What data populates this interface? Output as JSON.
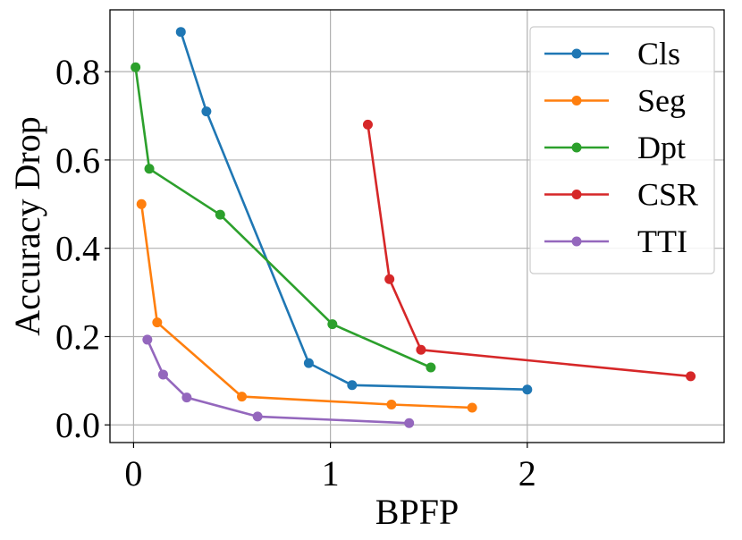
{
  "chart_data": {
    "type": "line",
    "xlabel": "BPFP",
    "ylabel": "Accuracy Drop",
    "xlim": [
      -0.12,
      3.0
    ],
    "ylim": [
      -0.04,
      0.94
    ],
    "xticks": [
      0,
      1,
      2
    ],
    "xtick_labels": [
      "0",
      "1",
      "2"
    ],
    "yticks": [
      0.0,
      0.2,
      0.4,
      0.6,
      0.8
    ],
    "ytick_labels": [
      "0.0",
      "0.2",
      "0.4",
      "0.6",
      "0.8"
    ],
    "grid": true,
    "legend_position": "top-right",
    "series": [
      {
        "name": "Cls",
        "color": "#1f77b4",
        "x": [
          0.24,
          0.37,
          0.89,
          1.11,
          2.0
        ],
        "y": [
          0.89,
          0.71,
          0.14,
          0.09,
          0.08
        ]
      },
      {
        "name": "Seg",
        "color": "#ff7f0e",
        "x": [
          0.04,
          0.12,
          0.55,
          1.31,
          1.72
        ],
        "y": [
          0.5,
          0.232,
          0.064,
          0.046,
          0.039
        ]
      },
      {
        "name": "Dpt",
        "color": "#2ca02c",
        "x": [
          0.01,
          0.08,
          0.44,
          1.01,
          1.51
        ],
        "y": [
          0.81,
          0.58,
          0.476,
          0.228,
          0.13
        ]
      },
      {
        "name": "CSR",
        "color": "#d62728",
        "x": [
          1.19,
          1.3,
          1.46,
          2.83
        ],
        "y": [
          0.68,
          0.33,
          0.17,
          0.11
        ]
      },
      {
        "name": "TTI",
        "color": "#9467bd",
        "x": [
          0.07,
          0.15,
          0.27,
          0.63,
          1.4
        ],
        "y": [
          0.193,
          0.114,
          0.062,
          0.019,
          0.004
        ]
      }
    ]
  }
}
